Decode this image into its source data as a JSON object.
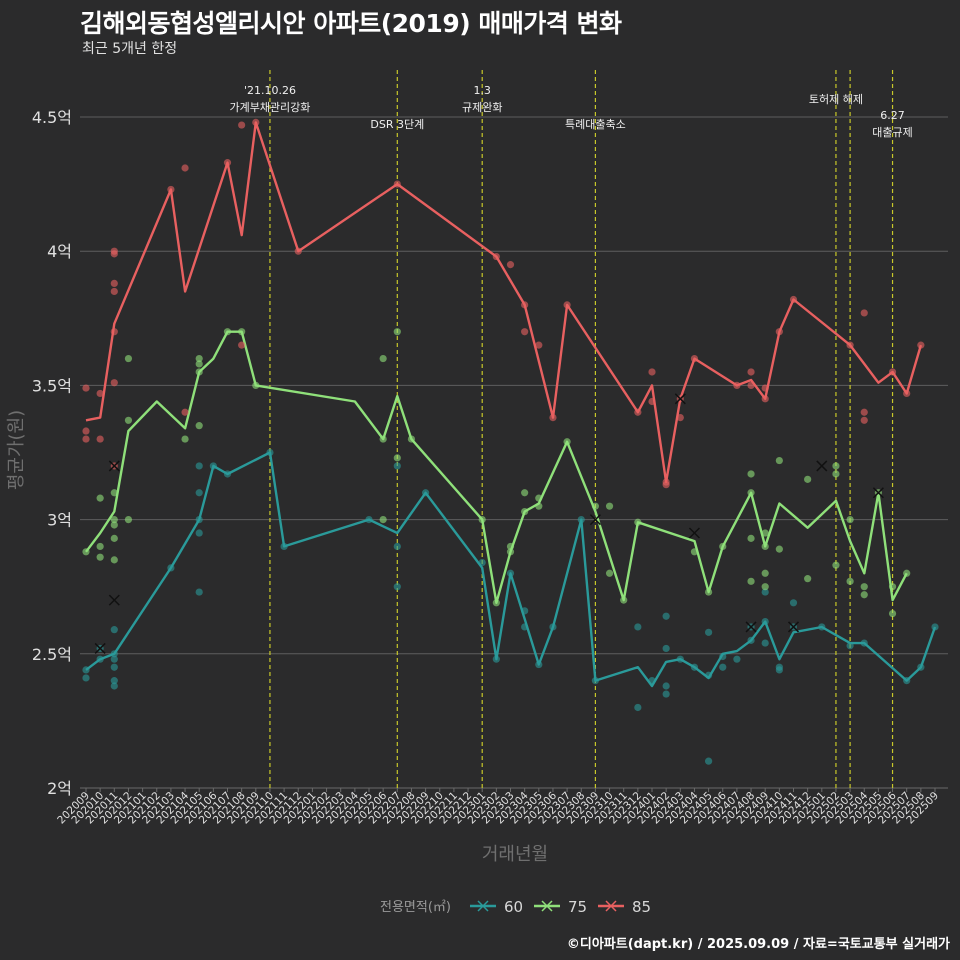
{
  "title": "김해외동협성엘리시안 아파트(2019) 매매가격 변화",
  "subtitle": "최근 5개년 한정",
  "caption": "©디아파트(dapt.kr) / 2025.09.09 / 자료=국토교통부 실거래가",
  "chart_data": {
    "type": "line",
    "xlabel": "거래년월",
    "ylabel": "평균가(원)",
    "ylim": [
      2,
      4.6
    ],
    "yticks": [
      {
        "v": 2,
        "label": "2억"
      },
      {
        "v": 2.5,
        "label": "2.5억"
      },
      {
        "v": 3,
        "label": "3억"
      },
      {
        "v": 3.5,
        "label": "3.5억"
      },
      {
        "v": 4,
        "label": "4억"
      },
      {
        "v": 4.5,
        "label": "4.5억"
      }
    ],
    "x_months": [
      "202009",
      "202010",
      "202011",
      "202012",
      "202101",
      "202102",
      "202103",
      "202104",
      "202105",
      "202106",
      "202107",
      "202108",
      "202109",
      "202110",
      "202111",
      "202112",
      "202201",
      "202202",
      "202203",
      "202204",
      "202205",
      "202206",
      "202207",
      "202208",
      "202209",
      "202210",
      "202211",
      "202212",
      "202301",
      "202302",
      "202303",
      "202304",
      "202305",
      "202306",
      "202307",
      "202308",
      "202309",
      "202310",
      "202311",
      "202312",
      "202401",
      "202402",
      "202403",
      "202404",
      "202405",
      "202406",
      "202407",
      "202408",
      "202409",
      "202410",
      "202411",
      "202412",
      "202501",
      "202502",
      "202503",
      "202504",
      "202505",
      "202506",
      "202507",
      "202508",
      "202509"
    ],
    "legend_title": "전용면적(㎡)",
    "legend_position": "bottom",
    "grid": true,
    "series": [
      {
        "name": "60",
        "color": "#2a9a9a",
        "line": [
          [
            0,
            2.44
          ],
          [
            1,
            2.48
          ],
          [
            2,
            2.5
          ],
          [
            6,
            2.82
          ],
          [
            8,
            3.0
          ],
          [
            9,
            3.2
          ],
          [
            10,
            3.17
          ],
          [
            13,
            3.25
          ],
          [
            14,
            2.9
          ],
          [
            20,
            3.0
          ],
          [
            22,
            2.95
          ],
          [
            24,
            3.1
          ],
          [
            28,
            2.82
          ],
          [
            29,
            2.48
          ],
          [
            30,
            2.8
          ],
          [
            32,
            2.46
          ],
          [
            33,
            2.6
          ],
          [
            35,
            3.0
          ],
          [
            36,
            2.4
          ],
          [
            39,
            2.45
          ],
          [
            40,
            2.38
          ],
          [
            41,
            2.47
          ],
          [
            42,
            2.48
          ],
          [
            43,
            2.45
          ],
          [
            44,
            2.41
          ],
          [
            45,
            2.5
          ],
          [
            46,
            2.51
          ],
          [
            47,
            2.55
          ],
          [
            48,
            2.62
          ],
          [
            49,
            2.48
          ],
          [
            50,
            2.58
          ],
          [
            52,
            2.6
          ],
          [
            54,
            2.54
          ],
          [
            55,
            2.54
          ],
          [
            58,
            2.4
          ],
          [
            59,
            2.45
          ],
          [
            60,
            2.6
          ]
        ],
        "points": [
          [
            0,
            2.44
          ],
          [
            0,
            2.41
          ],
          [
            1,
            2.48
          ],
          [
            1,
            2.52
          ],
          [
            2,
            2.5
          ],
          [
            2,
            2.48
          ],
          [
            2,
            2.45
          ],
          [
            2,
            2.4
          ],
          [
            2,
            2.38
          ],
          [
            2,
            2.59
          ],
          [
            6,
            2.82
          ],
          [
            8,
            3.0
          ],
          [
            8,
            2.95
          ],
          [
            8,
            3.2
          ],
          [
            8,
            3.1
          ],
          [
            8,
            2.73
          ],
          [
            9,
            3.2
          ],
          [
            10,
            3.17
          ],
          [
            13,
            3.25
          ],
          [
            14,
            2.9
          ],
          [
            20,
            3.0
          ],
          [
            22,
            3.2
          ],
          [
            22,
            2.9
          ],
          [
            22,
            2.75
          ],
          [
            24,
            3.1
          ],
          [
            28,
            2.84
          ],
          [
            29,
            2.48
          ],
          [
            30,
            2.8
          ],
          [
            31,
            2.66
          ],
          [
            31,
            2.6
          ],
          [
            32,
            2.46
          ],
          [
            33,
            2.6
          ],
          [
            35,
            3.0
          ],
          [
            36,
            2.4
          ],
          [
            39,
            2.6
          ],
          [
            39,
            2.3
          ],
          [
            40,
            2.4
          ],
          [
            41,
            2.64
          ],
          [
            41,
            2.52
          ],
          [
            41,
            2.38
          ],
          [
            41,
            2.35
          ],
          [
            42,
            2.48
          ],
          [
            43,
            2.45
          ],
          [
            44,
            2.58
          ],
          [
            44,
            2.42
          ],
          [
            44,
            2.1
          ],
          [
            45,
            2.49
          ],
          [
            45,
            2.45
          ],
          [
            46,
            2.48
          ],
          [
            47,
            2.6
          ],
          [
            47,
            2.55
          ],
          [
            48,
            2.62
          ],
          [
            48,
            2.54
          ],
          [
            48,
            2.73
          ],
          [
            49,
            2.45
          ],
          [
            49,
            2.44
          ],
          [
            50,
            2.69
          ],
          [
            50,
            2.6
          ],
          [
            52,
            2.6
          ],
          [
            54,
            2.53
          ],
          [
            55,
            2.54
          ],
          [
            58,
            2.4
          ],
          [
            59,
            2.45
          ],
          [
            60,
            2.6
          ]
        ],
        "crosses": [
          [
            1,
            2.52
          ],
          [
            2,
            2.7
          ],
          [
            47,
            2.6
          ],
          [
            50,
            2.6
          ]
        ]
      },
      {
        "name": "75",
        "color": "#8fe07a",
        "line": [
          [
            0,
            2.88
          ],
          [
            1,
            2.95
          ],
          [
            2,
            3.03
          ],
          [
            3,
            3.33
          ],
          [
            5,
            3.44
          ],
          [
            7,
            3.34
          ],
          [
            8,
            3.55
          ],
          [
            9,
            3.6
          ],
          [
            10,
            3.7
          ],
          [
            11,
            3.7
          ],
          [
            12,
            3.5
          ],
          [
            19,
            3.44
          ],
          [
            21,
            3.3
          ],
          [
            22,
            3.46
          ],
          [
            23,
            3.3
          ],
          [
            28,
            3.0
          ],
          [
            29,
            2.69
          ],
          [
            30,
            2.88
          ],
          [
            31,
            3.03
          ],
          [
            32,
            3.06
          ],
          [
            34,
            3.29
          ],
          [
            36,
            3.03
          ],
          [
            38,
            2.7
          ],
          [
            39,
            2.99
          ],
          [
            43,
            2.92
          ],
          [
            44,
            2.73
          ],
          [
            45,
            2.9
          ],
          [
            47,
            3.1
          ],
          [
            48,
            2.9
          ],
          [
            49,
            3.06
          ],
          [
            51,
            2.97
          ],
          [
            53,
            3.07
          ],
          [
            54,
            2.92
          ],
          [
            55,
            2.8
          ],
          [
            56,
            3.1
          ],
          [
            57,
            2.7
          ],
          [
            58,
            2.8
          ]
        ],
        "points": [
          [
            0,
            2.88
          ],
          [
            1,
            2.9
          ],
          [
            1,
            3.08
          ],
          [
            1,
            2.86
          ],
          [
            2,
            3.1
          ],
          [
            2,
            3.0
          ],
          [
            2,
            2.98
          ],
          [
            2,
            2.93
          ],
          [
            2,
            2.85
          ],
          [
            3,
            3.37
          ],
          [
            3,
            3.6
          ],
          [
            3,
            3.0
          ],
          [
            7,
            3.3
          ],
          [
            8,
            3.35
          ],
          [
            8,
            3.55
          ],
          [
            8,
            3.58
          ],
          [
            8,
            3.6
          ],
          [
            10,
            3.7
          ],
          [
            11,
            3.7
          ],
          [
            12,
            3.5
          ],
          [
            21,
            3.3
          ],
          [
            21,
            3.6
          ],
          [
            21,
            3.0
          ],
          [
            22,
            3.7
          ],
          [
            22,
            3.23
          ],
          [
            23,
            3.3
          ],
          [
            28,
            3.0
          ],
          [
            29,
            2.69
          ],
          [
            30,
            2.9
          ],
          [
            30,
            2.88
          ],
          [
            31,
            3.1
          ],
          [
            31,
            3.03
          ],
          [
            32,
            3.08
          ],
          [
            32,
            3.05
          ],
          [
            34,
            3.29
          ],
          [
            36,
            3.05
          ],
          [
            37,
            3.05
          ],
          [
            37,
            2.8
          ],
          [
            38,
            2.7
          ],
          [
            39,
            2.99
          ],
          [
            43,
            2.88
          ],
          [
            44,
            2.73
          ],
          [
            45,
            2.9
          ],
          [
            47,
            3.17
          ],
          [
            47,
            2.77
          ],
          [
            47,
            3.1
          ],
          [
            47,
            2.93
          ],
          [
            48,
            2.95
          ],
          [
            48,
            2.9
          ],
          [
            48,
            2.8
          ],
          [
            48,
            2.75
          ],
          [
            49,
            3.22
          ],
          [
            49,
            2.89
          ],
          [
            51,
            2.78
          ],
          [
            51,
            3.15
          ],
          [
            53,
            3.2
          ],
          [
            53,
            3.17
          ],
          [
            53,
            2.83
          ],
          [
            54,
            3.0
          ],
          [
            54,
            2.77
          ],
          [
            55,
            2.75
          ],
          [
            55,
            2.72
          ],
          [
            56,
            3.1
          ],
          [
            57,
            2.75
          ],
          [
            57,
            2.65
          ],
          [
            58,
            2.8
          ]
        ],
        "crosses": [
          [
            36,
            3.0
          ],
          [
            43,
            2.95
          ],
          [
            52,
            3.2
          ],
          [
            56,
            3.1
          ]
        ]
      },
      {
        "name": "85",
        "color": "#e86060",
        "line": [
          [
            0,
            3.37
          ],
          [
            1,
            3.38
          ],
          [
            2,
            3.73
          ],
          [
            6,
            4.23
          ],
          [
            7,
            3.85
          ],
          [
            10,
            4.33
          ],
          [
            11,
            4.06
          ],
          [
            12,
            4.48
          ],
          [
            15,
            4.0
          ],
          [
            22,
            4.25
          ],
          [
            29,
            3.98
          ],
          [
            31,
            3.8
          ],
          [
            33,
            3.38
          ],
          [
            34,
            3.8
          ],
          [
            39,
            3.4
          ],
          [
            40,
            3.5
          ],
          [
            41,
            3.14
          ],
          [
            42,
            3.45
          ],
          [
            43,
            3.6
          ],
          [
            46,
            3.5
          ],
          [
            47,
            3.52
          ],
          [
            48,
            3.45
          ],
          [
            49,
            3.7
          ],
          [
            50,
            3.82
          ],
          [
            54,
            3.65
          ],
          [
            55,
            3.58
          ],
          [
            56,
            3.51
          ],
          [
            57,
            3.55
          ],
          [
            58,
            3.47
          ],
          [
            59,
            3.65
          ]
        ],
        "points": [
          [
            0,
            3.49
          ],
          [
            0,
            3.33
          ],
          [
            0,
            3.3
          ],
          [
            1,
            3.47
          ],
          [
            1,
            3.3
          ],
          [
            2,
            4.0
          ],
          [
            2,
            3.99
          ],
          [
            2,
            3.88
          ],
          [
            2,
            3.85
          ],
          [
            2,
            3.7
          ],
          [
            2,
            3.51
          ],
          [
            2,
            3.2
          ],
          [
            6,
            4.23
          ],
          [
            7,
            4.31
          ],
          [
            7,
            3.4
          ],
          [
            10,
            4.33
          ],
          [
            11,
            4.47
          ],
          [
            11,
            3.65
          ],
          [
            12,
            4.48
          ],
          [
            15,
            4.0
          ],
          [
            22,
            4.25
          ],
          [
            29,
            3.98
          ],
          [
            30,
            3.95
          ],
          [
            31,
            3.8
          ],
          [
            31,
            3.7
          ],
          [
            32,
            3.65
          ],
          [
            33,
            3.38
          ],
          [
            34,
            3.8
          ],
          [
            39,
            3.4
          ],
          [
            40,
            3.55
          ],
          [
            40,
            3.44
          ],
          [
            41,
            3.13
          ],
          [
            41,
            3.14
          ],
          [
            42,
            3.45
          ],
          [
            42,
            3.38
          ],
          [
            43,
            3.6
          ],
          [
            46,
            3.5
          ],
          [
            47,
            3.55
          ],
          [
            47,
            3.5
          ],
          [
            48,
            3.45
          ],
          [
            48,
            3.49
          ],
          [
            49,
            3.7
          ],
          [
            50,
            3.82
          ],
          [
            54,
            3.65
          ],
          [
            55,
            3.77
          ],
          [
            55,
            3.4
          ],
          [
            55,
            3.37
          ],
          [
            57,
            3.55
          ],
          [
            58,
            3.47
          ],
          [
            59,
            3.65
          ]
        ],
        "crosses": [
          [
            2,
            3.2
          ],
          [
            42,
            3.45
          ]
        ]
      }
    ],
    "events": [
      {
        "idx": 13.0,
        "lines": [
          "'21.10.26",
          "가계부채관리강화"
        ]
      },
      {
        "idx": 22.0,
        "lines": [
          "DSR 3단계"
        ]
      },
      {
        "idx": 28.0,
        "lines": [
          "1.3",
          "규제완화"
        ]
      },
      {
        "idx": 36.0,
        "lines": [
          "특례대출축소"
        ]
      },
      {
        "idx": 53.0,
        "lines": [
          "토허제 해제"
        ]
      },
      {
        "idx": 54.0,
        "lines": []
      },
      {
        "idx": 57.0,
        "lines": [
          "6.27",
          "대출규제"
        ]
      }
    ]
  }
}
